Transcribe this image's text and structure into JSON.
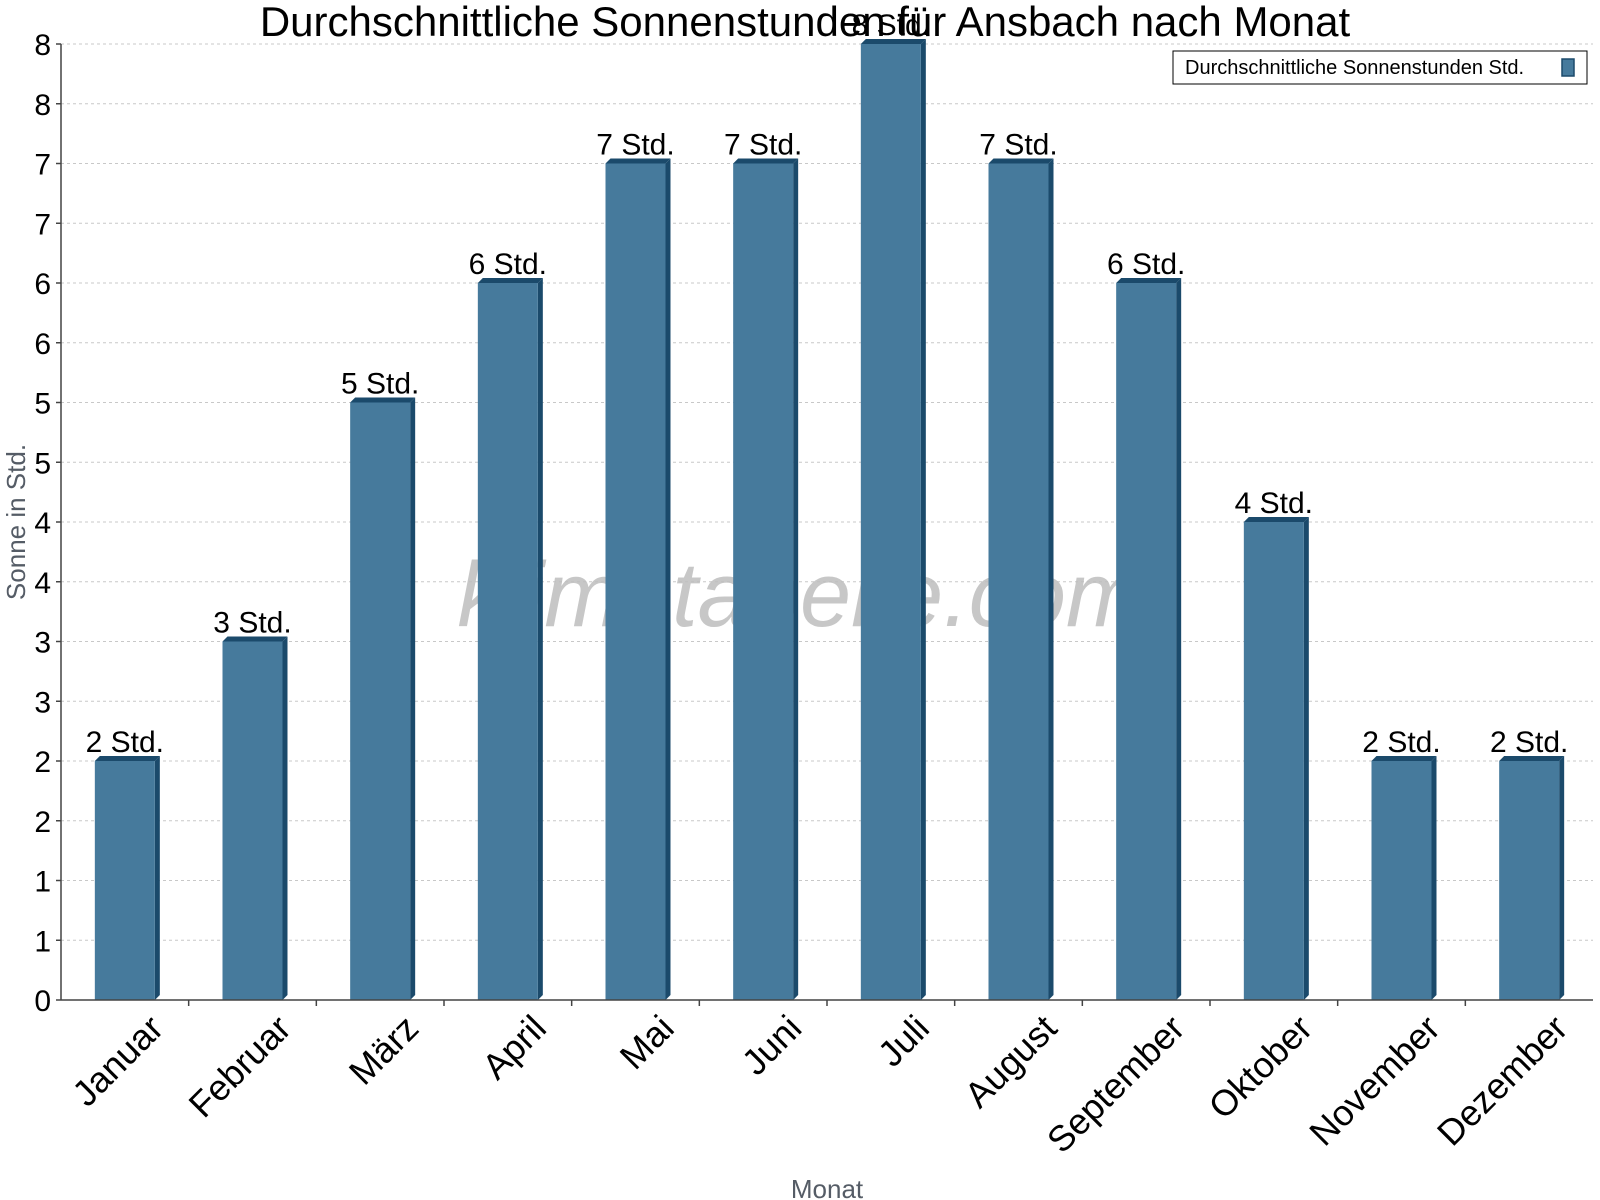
{
  "chart_data": {
    "type": "bar",
    "title": "Durchschnittliche Sonnenstunden für Ansbach nach Monat",
    "xlabel": "Monat",
    "ylabel": "Sonne in Std.",
    "categories": [
      "Januar",
      "Februar",
      "März",
      "April",
      "Mai",
      "Juni",
      "Juli",
      "August",
      "September",
      "Oktober",
      "November",
      "Dezember"
    ],
    "series": [
      {
        "name": "Durchschnittliche Sonnenstunden Std.",
        "values": [
          2,
          3,
          5,
          6,
          7,
          7,
          8,
          7,
          6,
          4,
          2,
          2
        ],
        "data_labels": [
          "2 Std.",
          "3 Std.",
          "5 Std.",
          "6 Std.",
          "7 Std.",
          "7 Std.",
          "8 Std.",
          "7 Std.",
          "6 Std.",
          "4 Std.",
          "2 Std.",
          "2 Std."
        ],
        "color": "#467a9c",
        "edge_color": "#1b4a6b"
      }
    ],
    "ylim": [
      0,
      8
    ],
    "yticks": [
      0,
      0.5,
      1,
      1.5,
      2,
      2.5,
      3,
      3.5,
      4,
      4.5,
      5,
      5.5,
      6,
      6.5,
      7,
      7.5,
      8
    ],
    "ytick_labels": [
      "0",
      "1",
      "1",
      "2",
      "2",
      "3",
      "3",
      "4",
      "4",
      "5",
      "5",
      "6",
      "6",
      "7",
      "7",
      "8",
      "8"
    ],
    "grid": true,
    "legend_position": "top-right",
    "watermark": "klimatabelle.com"
  }
}
